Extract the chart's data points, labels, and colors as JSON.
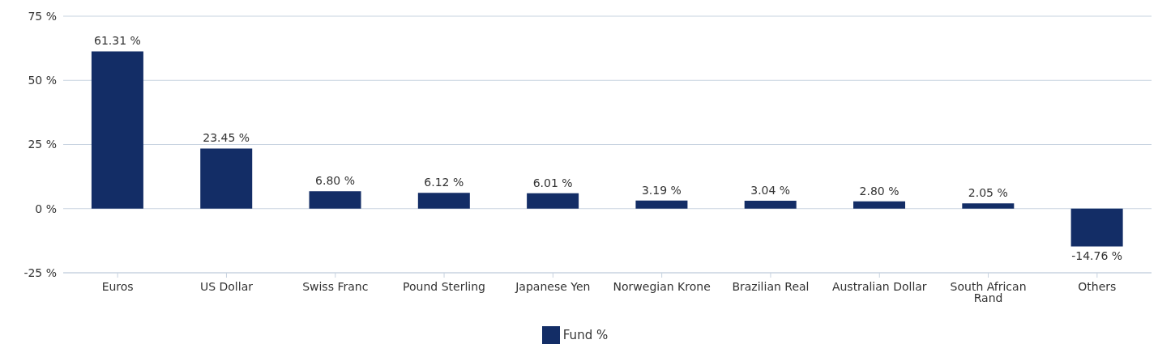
{
  "chart_data": {
    "type": "bar",
    "categories": [
      "Euros",
      "US Dollar",
      "Swiss Franc",
      "Pound Sterling",
      "Japanese Yen",
      "Norwegian Krone",
      "Brazilian Real",
      "Australian Dollar",
      "South African Rand",
      "Others"
    ],
    "series": [
      {
        "name": "Fund %",
        "color": "#132d66",
        "values": [
          61.31,
          23.45,
          6.8,
          6.12,
          6.01,
          3.19,
          3.04,
          2.8,
          2.05,
          -14.76
        ],
        "value_labels": [
          "61.31 %",
          "23.45 %",
          "6.80 %",
          "6.12 %",
          "6.01 %",
          "3.19 %",
          "3.04 %",
          "2.80 %",
          "2.05 %",
          "-14.76 %"
        ]
      }
    ],
    "ylim": [
      -25,
      75
    ],
    "yticks": [
      {
        "value": -25,
        "label": "-25 %"
      },
      {
        "value": 0,
        "label": "0 %"
      },
      {
        "value": 25,
        "label": "25 %"
      },
      {
        "value": 50,
        "label": "50 %"
      },
      {
        "value": 75,
        "label": "75 %"
      }
    ],
    "grid": "y",
    "legend": "bottom"
  }
}
